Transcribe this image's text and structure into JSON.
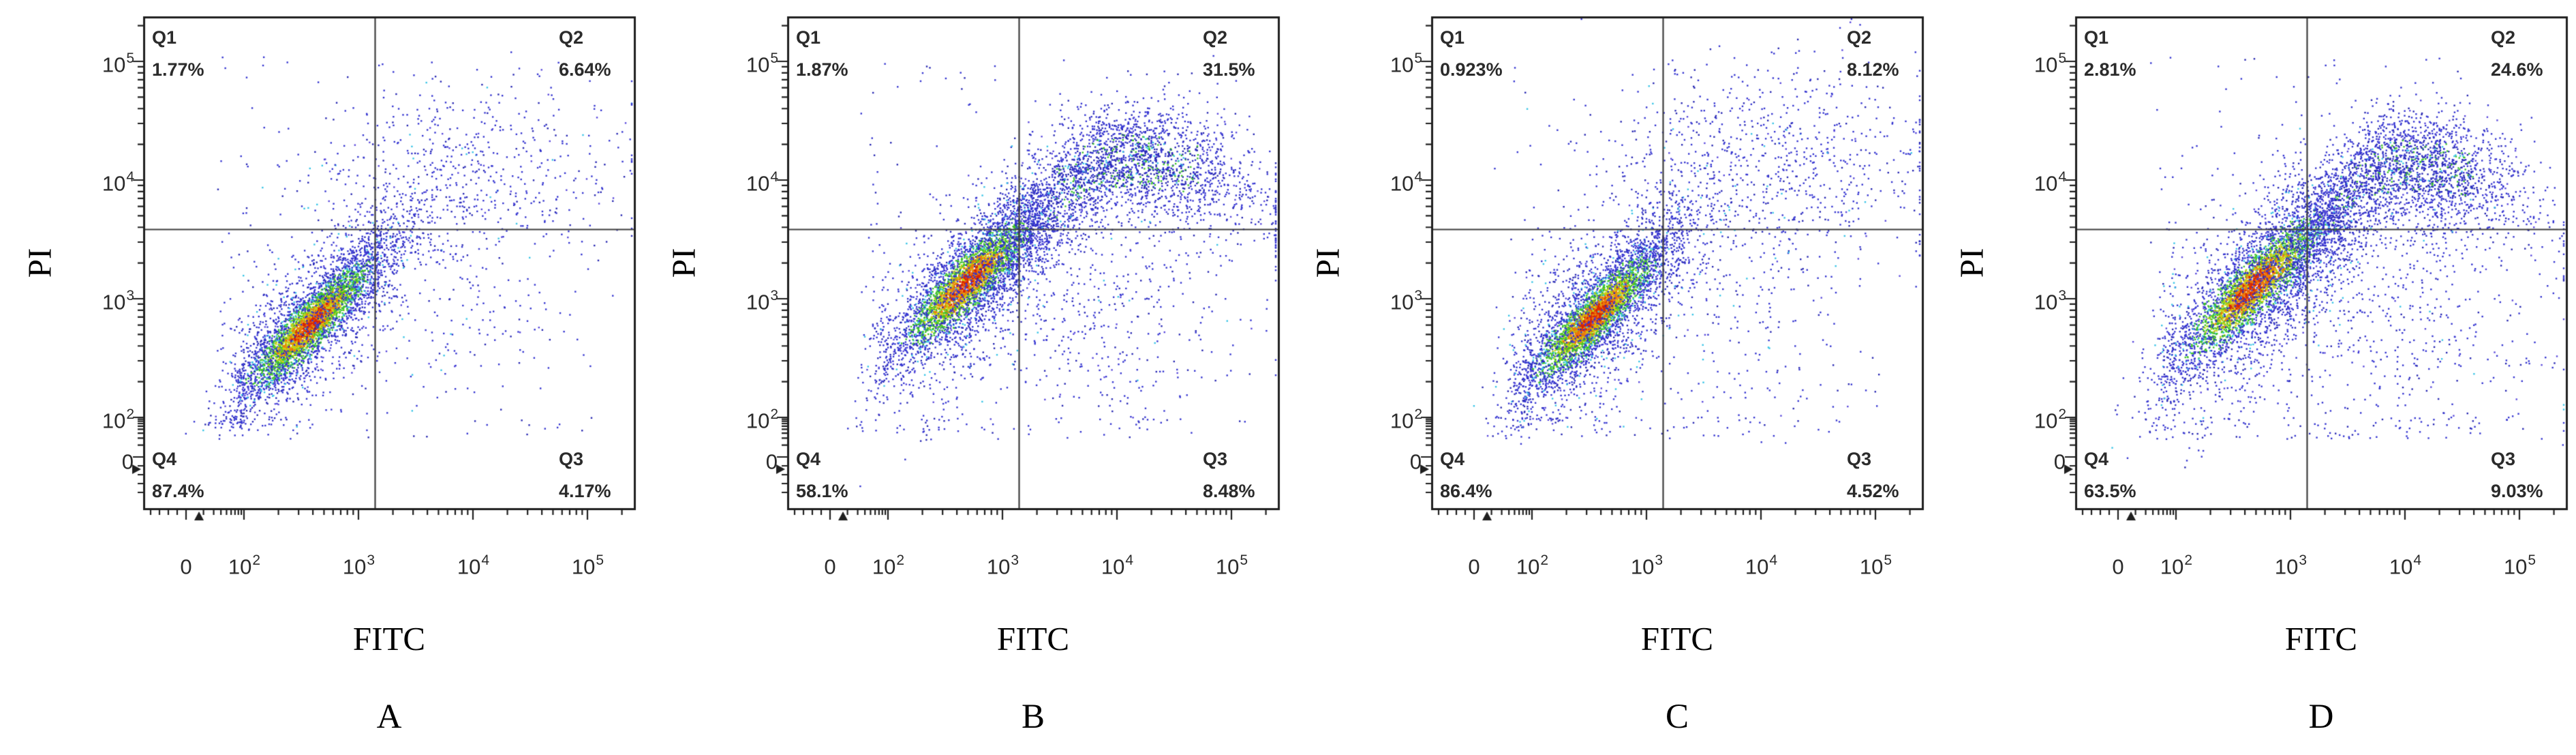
{
  "axis_display": {
    "x": [
      {
        "b": "0"
      },
      {
        "b": "10",
        "e": "2"
      },
      {
        "b": "10",
        "e": "3"
      },
      {
        "b": "10",
        "e": "4"
      },
      {
        "b": "10",
        "e": "5"
      }
    ],
    "y": [
      {
        "b": "10",
        "e": "5"
      },
      {
        "b": "10",
        "e": "4"
      },
      {
        "b": "10",
        "e": "3"
      },
      {
        "b": "10",
        "e": "2"
      },
      {
        "b": "0"
      }
    ]
  },
  "palette": {
    "blue": "#3434d0",
    "blue_dark": "#2828b2",
    "violet": "#5a49dc",
    "cyan": "#38c4e6",
    "green": "#3ec22a",
    "yellow": "#c8d013",
    "orange": "#ec7c0c",
    "red": "#d82605",
    "box": "#1f1f1f",
    "gate": "#3d3d3d",
    "tick": "#1f1f1f",
    "text": "#2b2b2b"
  },
  "chart_data": [
    {
      "type": "scatter",
      "panel_label": "A",
      "xlabel": "FITC",
      "ylabel": "PI",
      "seed": 101,
      "x_axis": {
        "label": "FITC",
        "scale": "biexponential-log",
        "ticks": [
          "0",
          "10^2",
          "10^3",
          "10^4",
          "10^5"
        ]
      },
      "y_axis": {
        "label": "PI",
        "scale": "biexponential-log",
        "ticks": [
          "0",
          "10^2",
          "10^3",
          "10^4",
          "10^5"
        ]
      },
      "gate": {
        "x_value": "~1.3e3",
        "y_value": "~3.8e3"
      },
      "quadrants": [
        {
          "name": "Q1",
          "percent": "1.77%",
          "position": "top-left"
        },
        {
          "name": "Q2",
          "percent": "6.64%",
          "position": "top-right"
        },
        {
          "name": "Q3",
          "percent": "4.17%",
          "position": "bottom-right"
        },
        {
          "name": "Q4",
          "percent": "87.4%",
          "position": "bottom-left"
        }
      ],
      "clusters": [
        {
          "kind": "diag",
          "n": 3500,
          "cx": 0.58,
          "cy": 0.78,
          "sa": 0.4,
          "sc": 0.1
        },
        {
          "kind": "diag",
          "n": 1150,
          "cx": 0.58,
          "cy": 0.78,
          "sa": 0.62,
          "sc": 0.26,
          "mono": true
        },
        {
          "kind": "blob",
          "n": 620,
          "cx": 1.95,
          "cy": 2.02,
          "sx": 0.7,
          "sy": 0.4
        },
        {
          "kind": "diag",
          "n": 280,
          "cx": 1.12,
          "cy": 1.4,
          "sa": 0.34,
          "sc": 0.16,
          "mono": true
        },
        {
          "kind": "blob",
          "n": 150,
          "cx": 1.8,
          "cy": 0.8,
          "sx": 0.55,
          "sy": 0.45
        },
        {
          "kind": "uniform",
          "n": 130,
          "x0": -0.5,
          "x1": 3.05,
          "y0": -0.55,
          "y1": 3.05
        }
      ]
    },
    {
      "type": "scatter",
      "panel_label": "B",
      "xlabel": "FITC",
      "ylabel": "PI",
      "seed": 202,
      "x_axis": {
        "label": "FITC",
        "scale": "biexponential-log",
        "ticks": [
          "0",
          "10^2",
          "10^3",
          "10^4",
          "10^5"
        ]
      },
      "y_axis": {
        "label": "PI",
        "scale": "biexponential-log",
        "ticks": [
          "0",
          "10^2",
          "10^3",
          "10^4",
          "10^5"
        ]
      },
      "gate": {
        "x_value": "~1.3e3",
        "y_value": "~3.8e3"
      },
      "quadrants": [
        {
          "name": "Q1",
          "percent": "1.87%",
          "position": "top-left"
        },
        {
          "name": "Q2",
          "percent": "31.5%",
          "position": "top-right"
        },
        {
          "name": "Q3",
          "percent": "8.48%",
          "position": "bottom-right"
        },
        {
          "name": "Q4",
          "percent": "58.1%",
          "position": "bottom-left"
        }
      ],
      "clusters": [
        {
          "kind": "diag",
          "n": 3100,
          "cx": 0.7,
          "cy": 1.14,
          "sa": 0.42,
          "sc": 0.115
        },
        {
          "kind": "diag",
          "n": 1050,
          "cx": 0.68,
          "cy": 1.1,
          "sa": 0.64,
          "sc": 0.27,
          "mono": true
        },
        {
          "kind": "band",
          "n": 2550,
          "cx": 2.05,
          "cy": 2.16,
          "sx": 0.6,
          "sy": 0.25
        },
        {
          "kind": "diag",
          "n": 520,
          "cx": 1.12,
          "cy": 1.58,
          "sa": 0.38,
          "sc": 0.2,
          "mono": true
        },
        {
          "kind": "blob",
          "n": 420,
          "cx": 1.9,
          "cy": 0.92,
          "sx": 0.65,
          "sy": 0.55
        },
        {
          "kind": "uniform",
          "n": 200,
          "x0": -0.5,
          "x1": 3.05,
          "y0": -0.55,
          "y1": 3.05
        }
      ]
    },
    {
      "type": "scatter",
      "panel_label": "C",
      "xlabel": "FITC",
      "ylabel": "PI",
      "seed": 303,
      "x_axis": {
        "label": "FITC",
        "scale": "biexponential-log",
        "ticks": [
          "0",
          "10^2",
          "10^3",
          "10^4",
          "10^5"
        ]
      },
      "y_axis": {
        "label": "PI",
        "scale": "biexponential-log",
        "ticks": [
          "0",
          "10^2",
          "10^3",
          "10^4",
          "10^5"
        ]
      },
      "gate": {
        "x_value": "~1.3e3",
        "y_value": "~3.8e3"
      },
      "quadrants": [
        {
          "name": "Q1",
          "percent": "0.923%",
          "position": "top-left"
        },
        {
          "name": "Q2",
          "percent": "8.12%",
          "position": "top-right"
        },
        {
          "name": "Q3",
          "percent": "4.52%",
          "position": "bottom-right"
        },
        {
          "name": "Q4",
          "percent": "86.4%",
          "position": "bottom-left"
        }
      ],
      "clusters": [
        {
          "kind": "diag",
          "n": 3300,
          "cx": 0.55,
          "cy": 0.85,
          "sa": 0.4,
          "sc": 0.105
        },
        {
          "kind": "diag",
          "n": 1350,
          "cx": 0.52,
          "cy": 0.8,
          "sa": 0.63,
          "sc": 0.29,
          "mono": true
        },
        {
          "kind": "blob",
          "n": 820,
          "cx": 2.0,
          "cy": 2.08,
          "sx": 0.76,
          "sy": 0.46
        },
        {
          "kind": "diag",
          "n": 300,
          "cx": 1.1,
          "cy": 1.48,
          "sa": 0.36,
          "sc": 0.18,
          "mono": true
        },
        {
          "kind": "blob",
          "n": 180,
          "cx": 1.8,
          "cy": 0.75,
          "sx": 0.6,
          "sy": 0.5
        },
        {
          "kind": "uniform",
          "n": 160,
          "x0": -0.5,
          "x1": 3.05,
          "y0": -0.55,
          "y1": 3.05
        }
      ]
    },
    {
      "type": "scatter",
      "panel_label": "D",
      "xlabel": "FITC",
      "ylabel": "PI",
      "seed": 404,
      "x_axis": {
        "label": "FITC",
        "scale": "biexponential-log",
        "ticks": [
          "0",
          "10^2",
          "10^3",
          "10^4",
          "10^5"
        ]
      },
      "y_axis": {
        "label": "PI",
        "scale": "biexponential-log",
        "ticks": [
          "0",
          "10^2",
          "10^3",
          "10^4",
          "10^5"
        ]
      },
      "gate": {
        "x_value": "~1.3e3",
        "y_value": "~3.8e3"
      },
      "quadrants": [
        {
          "name": "Q1",
          "percent": "2.81%",
          "position": "top-left"
        },
        {
          "name": "Q2",
          "percent": "24.6%",
          "position": "top-right"
        },
        {
          "name": "Q3",
          "percent": "9.03%",
          "position": "bottom-right"
        },
        {
          "name": "Q4",
          "percent": "63.5%",
          "position": "bottom-left"
        }
      ],
      "clusters": [
        {
          "kind": "diag",
          "n": 3100,
          "cx": 0.68,
          "cy": 1.1,
          "sa": 0.46,
          "sc": 0.125
        },
        {
          "kind": "diag",
          "n": 1200,
          "cx": 0.7,
          "cy": 1.08,
          "sa": 0.68,
          "sc": 0.3,
          "mono": true
        },
        {
          "kind": "band",
          "n": 2350,
          "cx": 1.98,
          "cy": 2.12,
          "sx": 0.56,
          "sy": 0.24
        },
        {
          "kind": "diag",
          "n": 600,
          "cx": 1.15,
          "cy": 1.6,
          "sa": 0.4,
          "sc": 0.22,
          "mono": true
        },
        {
          "kind": "blob",
          "n": 500,
          "cx": 1.9,
          "cy": 0.9,
          "sx": 0.66,
          "sy": 0.58
        },
        {
          "kind": "uniform",
          "n": 210,
          "x0": -0.5,
          "x1": 3.05,
          "y0": -0.55,
          "y1": 3.05
        }
      ]
    }
  ]
}
